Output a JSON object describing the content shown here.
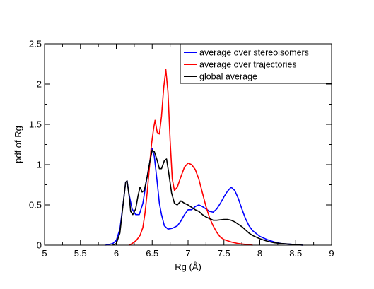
{
  "chart_data": {
    "type": "line",
    "title": "",
    "xlabel": "Rg (Å)",
    "ylabel": "pdf of Rg",
    "xlim": [
      5,
      9
    ],
    "ylim": [
      0,
      2.5
    ],
    "x_ticks": [
      "5",
      "5.5",
      "6",
      "6.5",
      "7",
      "7.5",
      "8",
      "8.5",
      "9"
    ],
    "y_ticks": [
      "0",
      "0.5",
      "1",
      "1.5",
      "2",
      "2.5"
    ],
    "grid": false,
    "legend_position": "top-right",
    "series": [
      {
        "name": "average over stereoisomers",
        "color": "#0000ff",
        "points": [
          [
            5.85,
            0.0
          ],
          [
            5.95,
            0.02
          ],
          [
            6.0,
            0.06
          ],
          [
            6.05,
            0.2
          ],
          [
            6.1,
            0.55
          ],
          [
            6.13,
            0.78
          ],
          [
            6.15,
            0.8
          ],
          [
            6.18,
            0.62
          ],
          [
            6.22,
            0.45
          ],
          [
            6.27,
            0.38
          ],
          [
            6.32,
            0.38
          ],
          [
            6.37,
            0.52
          ],
          [
            6.42,
            0.8
          ],
          [
            6.47,
            1.05
          ],
          [
            6.5,
            1.2
          ],
          [
            6.53,
            1.1
          ],
          [
            6.57,
            0.78
          ],
          [
            6.6,
            0.52
          ],
          [
            6.63,
            0.38
          ],
          [
            6.67,
            0.24
          ],
          [
            6.72,
            0.2
          ],
          [
            6.78,
            0.21
          ],
          [
            6.85,
            0.24
          ],
          [
            6.9,
            0.3
          ],
          [
            6.95,
            0.38
          ],
          [
            7.0,
            0.44
          ],
          [
            7.05,
            0.44
          ],
          [
            7.1,
            0.48
          ],
          [
            7.15,
            0.5
          ],
          [
            7.2,
            0.48
          ],
          [
            7.25,
            0.45
          ],
          [
            7.3,
            0.42
          ],
          [
            7.35,
            0.41
          ],
          [
            7.4,
            0.45
          ],
          [
            7.45,
            0.52
          ],
          [
            7.5,
            0.6
          ],
          [
            7.55,
            0.67
          ],
          [
            7.6,
            0.72
          ],
          [
            7.65,
            0.68
          ],
          [
            7.7,
            0.58
          ],
          [
            7.75,
            0.45
          ],
          [
            7.8,
            0.33
          ],
          [
            7.85,
            0.24
          ],
          [
            7.9,
            0.18
          ],
          [
            8.0,
            0.11
          ],
          [
            8.1,
            0.07
          ],
          [
            8.2,
            0.04
          ],
          [
            8.3,
            0.02
          ],
          [
            8.45,
            0.01
          ],
          [
            8.6,
            0.0
          ]
        ]
      },
      {
        "name": "average over trajectories",
        "color": "#ff0000",
        "points": [
          [
            6.18,
            0.0
          ],
          [
            6.22,
            0.02
          ],
          [
            6.28,
            0.06
          ],
          [
            6.33,
            0.12
          ],
          [
            6.37,
            0.22
          ],
          [
            6.4,
            0.4
          ],
          [
            6.43,
            0.65
          ],
          [
            6.46,
            0.95
          ],
          [
            6.49,
            1.25
          ],
          [
            6.52,
            1.45
          ],
          [
            6.54,
            1.55
          ],
          [
            6.57,
            1.4
          ],
          [
            6.6,
            1.38
          ],
          [
            6.63,
            1.6
          ],
          [
            6.66,
            1.95
          ],
          [
            6.69,
            2.18
          ],
          [
            6.72,
            1.9
          ],
          [
            6.75,
            1.3
          ],
          [
            6.78,
            0.82
          ],
          [
            6.81,
            0.68
          ],
          [
            6.85,
            0.72
          ],
          [
            6.9,
            0.85
          ],
          [
            6.95,
            0.97
          ],
          [
            7.0,
            1.02
          ],
          [
            7.05,
            1.0
          ],
          [
            7.1,
            0.94
          ],
          [
            7.15,
            0.82
          ],
          [
            7.2,
            0.65
          ],
          [
            7.25,
            0.48
          ],
          [
            7.3,
            0.34
          ],
          [
            7.35,
            0.24
          ],
          [
            7.4,
            0.16
          ],
          [
            7.45,
            0.1
          ],
          [
            7.5,
            0.07
          ],
          [
            7.6,
            0.04
          ],
          [
            7.7,
            0.02
          ],
          [
            7.8,
            0.01
          ],
          [
            7.9,
            0.0
          ]
        ]
      },
      {
        "name": "global average",
        "color": "#000000",
        "points": [
          [
            5.95,
            0.0
          ],
          [
            6.0,
            0.02
          ],
          [
            6.05,
            0.15
          ],
          [
            6.1,
            0.55
          ],
          [
            6.13,
            0.78
          ],
          [
            6.15,
            0.8
          ],
          [
            6.18,
            0.6
          ],
          [
            6.2,
            0.42
          ],
          [
            6.23,
            0.38
          ],
          [
            6.27,
            0.45
          ],
          [
            6.3,
            0.6
          ],
          [
            6.33,
            0.72
          ],
          [
            6.36,
            0.66
          ],
          [
            6.39,
            0.68
          ],
          [
            6.43,
            0.85
          ],
          [
            6.47,
            1.05
          ],
          [
            6.5,
            1.18
          ],
          [
            6.53,
            1.16
          ],
          [
            6.57,
            1.05
          ],
          [
            6.6,
            0.95
          ],
          [
            6.63,
            0.95
          ],
          [
            6.67,
            1.05
          ],
          [
            6.7,
            1.07
          ],
          [
            6.73,
            0.9
          ],
          [
            6.77,
            0.65
          ],
          [
            6.81,
            0.52
          ],
          [
            6.85,
            0.5
          ],
          [
            6.9,
            0.55
          ],
          [
            6.95,
            0.52
          ],
          [
            7.0,
            0.5
          ],
          [
            7.05,
            0.47
          ],
          [
            7.1,
            0.44
          ],
          [
            7.15,
            0.42
          ],
          [
            7.2,
            0.38
          ],
          [
            7.25,
            0.35
          ],
          [
            7.3,
            0.33
          ],
          [
            7.35,
            0.31
          ],
          [
            7.4,
            0.31
          ],
          [
            7.5,
            0.32
          ],
          [
            7.55,
            0.32
          ],
          [
            7.6,
            0.31
          ],
          [
            7.65,
            0.29
          ],
          [
            7.7,
            0.26
          ],
          [
            7.75,
            0.23
          ],
          [
            7.8,
            0.19
          ],
          [
            7.85,
            0.15
          ],
          [
            7.9,
            0.12
          ],
          [
            8.0,
            0.08
          ],
          [
            8.1,
            0.05
          ],
          [
            8.2,
            0.03
          ],
          [
            8.3,
            0.02
          ],
          [
            8.45,
            0.01
          ],
          [
            8.6,
            0.0
          ]
        ]
      }
    ]
  }
}
